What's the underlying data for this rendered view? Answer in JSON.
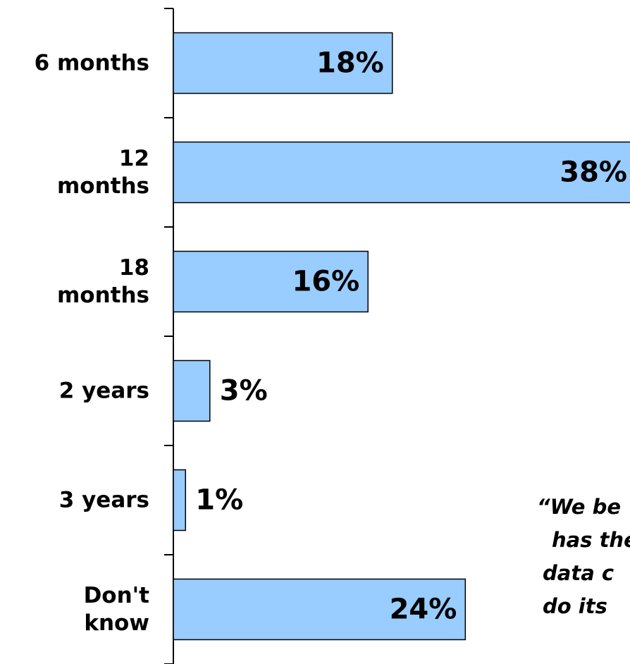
{
  "chart_data": {
    "type": "barh",
    "categories": [
      "6 months",
      "12\nmonths",
      "18\nmonths",
      "2 years",
      "3 years",
      "Don't\nknow"
    ],
    "values": [
      18,
      38,
      16,
      3,
      1,
      24
    ],
    "value_labels": [
      "18%",
      "38%",
      "16%",
      "3%",
      "1%",
      "24%"
    ],
    "color": "#99ccff",
    "xlim": [
      0,
      38
    ],
    "annotation": [
      "“We be",
      "has the",
      "data c",
      "do its"
    ]
  }
}
